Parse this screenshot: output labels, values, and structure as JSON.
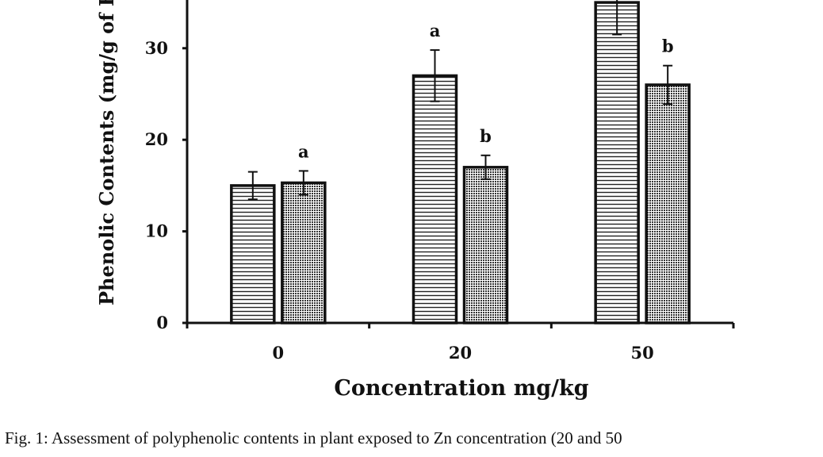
{
  "chart_data": {
    "type": "bar",
    "ylabel": "Phenolic Contents (mg/g of FW)",
    "xlabel": "Concentration mg/kg",
    "categories": [
      "0",
      "20",
      "50"
    ],
    "ylim": [
      0,
      37
    ],
    "yticks": [
      0,
      10,
      20,
      30
    ],
    "grid": false,
    "series": [
      {
        "values": [
          15,
          27,
          35
        ],
        "errors": [
          1.5,
          2.8,
          3.5
        ],
        "annotations": [
          "",
          "a",
          ""
        ],
        "pattern": "horizontal-lines"
      },
      {
        "values": [
          15.3,
          17,
          26
        ],
        "errors": [
          1.3,
          1.3,
          2.1
        ],
        "annotations": [
          "a",
          "b",
          "b"
        ],
        "pattern": "crosshatch"
      }
    ]
  },
  "caption": "Fig. 1:  Assessment of polyphenolic contents in plant exposed to Zn concentration (20 and 50"
}
